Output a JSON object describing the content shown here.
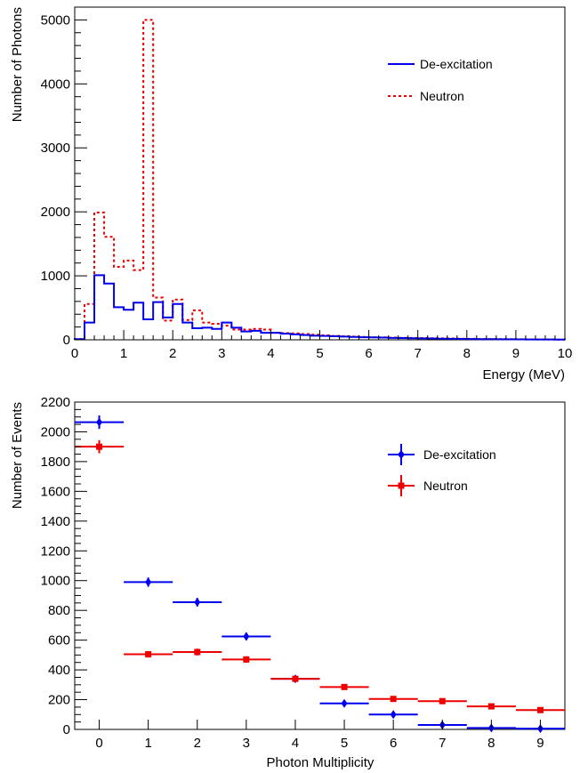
{
  "chart_data": [
    {
      "type": "histogram",
      "xlabel": "Energy (MeV)",
      "ylabel": "Number of Photons",
      "xlim": [
        0,
        10
      ],
      "ylim": [
        0,
        5200
      ],
      "x_ticks": [
        "0",
        "1",
        "2",
        "3",
        "4",
        "5",
        "6",
        "7",
        "8",
        "9",
        "10"
      ],
      "y_ticks": [
        "0",
        "1000",
        "2000",
        "3000",
        "4000",
        "5000"
      ],
      "legend_position": "top-right",
      "bin_edges": [
        0,
        0.2,
        0.4,
        0.6,
        0.8,
        1.0,
        1.2,
        1.4,
        1.6,
        1.8,
        2.0,
        2.2,
        2.4,
        2.6,
        2.8,
        3.0,
        3.2,
        3.4,
        3.6,
        3.8,
        4.0,
        4.2,
        4.4,
        4.6,
        4.8,
        5.0,
        5.2,
        5.4,
        5.6,
        5.8,
        6.0,
        6.2,
        6.4,
        6.6,
        6.8,
        7.0,
        7.2,
        7.4,
        7.6,
        7.8,
        8.0,
        8.2,
        8.4,
        8.6,
        8.8,
        9.0,
        9.2,
        9.4,
        9.6,
        9.8,
        10.0
      ],
      "series": [
        {
          "name": "De-excitation",
          "color": "#0000ee",
          "style": "solid",
          "values": [
            10,
            270,
            1010,
            880,
            510,
            470,
            580,
            320,
            590,
            350,
            560,
            270,
            180,
            190,
            170,
            270,
            190,
            130,
            140,
            110,
            110,
            95,
            85,
            75,
            65,
            60,
            55,
            50,
            45,
            40,
            38,
            35,
            30,
            28,
            25,
            22,
            20,
            18,
            16,
            14,
            12,
            11,
            10,
            9,
            8,
            7,
            6,
            5,
            5,
            4
          ]
        },
        {
          "name": "Neutron",
          "color": "#ee0000",
          "style": "dashed",
          "values": [
            10,
            560,
            1990,
            1610,
            1140,
            1240,
            1090,
            5000,
            660,
            300,
            630,
            310,
            460,
            270,
            250,
            220,
            160,
            160,
            170,
            160,
            110,
            105,
            100,
            90,
            80,
            70,
            60,
            55,
            50,
            45,
            40,
            38,
            35,
            32,
            30,
            28,
            25,
            22,
            20,
            18,
            15,
            13,
            11,
            10,
            9,
            8,
            7,
            6,
            5,
            4
          ]
        }
      ]
    },
    {
      "type": "scatter",
      "xlabel": "Photon Multiplicity",
      "ylabel": "Number of Events",
      "xlim": [
        -0.5,
        9.5
      ],
      "ylim": [
        0,
        2200
      ],
      "x_ticks": [
        "0",
        "1",
        "2",
        "3",
        "4",
        "5",
        "6",
        "7",
        "8",
        "9"
      ],
      "y_ticks": [
        "0",
        "200",
        "400",
        "600",
        "800",
        "1000",
        "1200",
        "1400",
        "1600",
        "1800",
        "2000",
        "2200"
      ],
      "legend_position": "top-right",
      "categories": [
        0,
        1,
        2,
        3,
        4,
        5,
        6,
        7,
        8,
        9
      ],
      "series": [
        {
          "name": "De-excitation",
          "color": "#0000ee",
          "marker": "diamond",
          "values": [
            2065,
            990,
            855,
            625,
            340,
            175,
            100,
            30,
            10,
            5
          ],
          "errors": [
            45,
            31,
            29,
            25,
            18,
            13,
            10,
            5,
            3,
            2
          ]
        },
        {
          "name": "Neutron",
          "color": "#ee0000",
          "marker": "square",
          "values": [
            1900,
            505,
            520,
            470,
            340,
            285,
            205,
            190,
            155,
            130
          ],
          "errors": [
            44,
            22,
            23,
            22,
            18,
            17,
            14,
            14,
            12,
            11
          ]
        }
      ]
    }
  ]
}
